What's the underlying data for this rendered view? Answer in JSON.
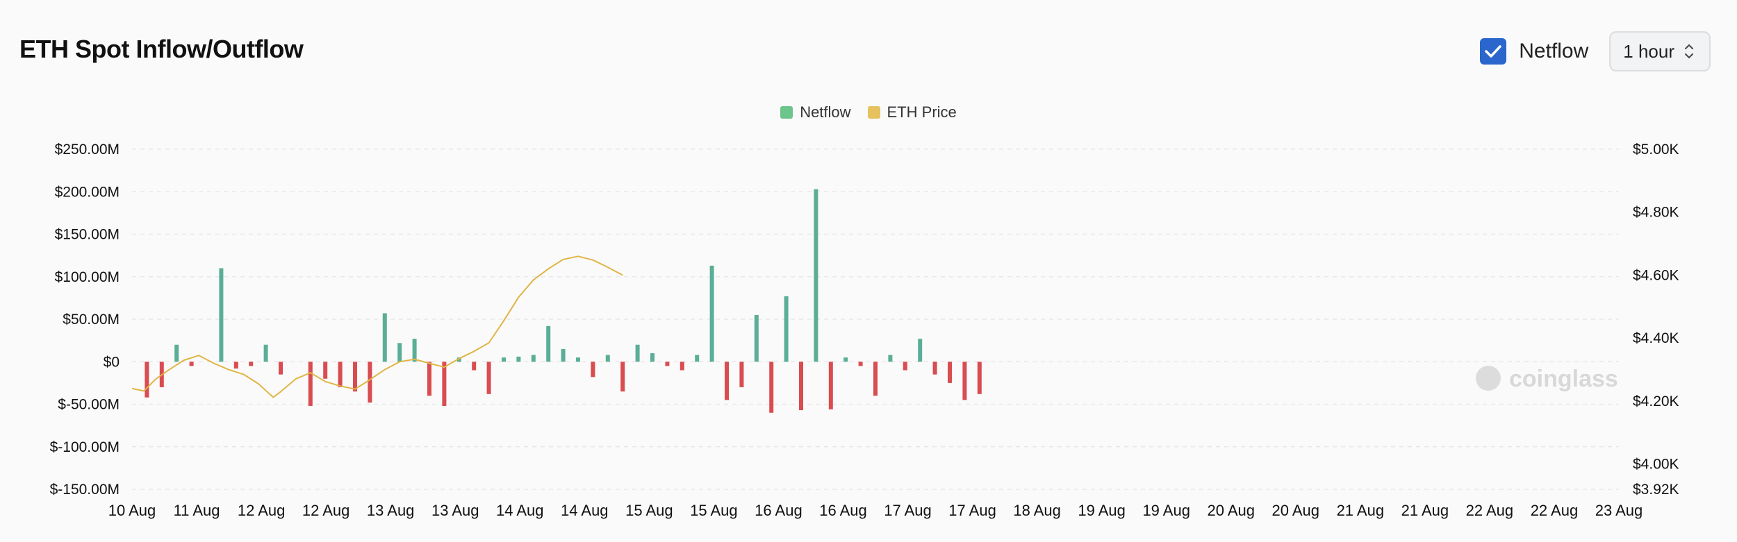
{
  "header": {
    "title": "ETH Spot Inflow/Outflow",
    "checkbox_label": "Netflow",
    "interval": "1 hour"
  },
  "watermark": "coinglass",
  "chart_data": {
    "type": "bar",
    "title": "ETH Spot Inflow/Outflow",
    "legend": [
      {
        "name": "Netflow",
        "color": "#6cc58a"
      },
      {
        "name": "ETH Price",
        "color": "#e5c25f"
      }
    ],
    "colors": {
      "positive": "#5bae96",
      "negative": "#d94c50",
      "price": "#e0b545"
    },
    "left_axis": {
      "min": -150,
      "max": 250,
      "ticks": [
        250,
        200,
        150,
        100,
        50,
        0,
        -50,
        -100,
        -150
      ],
      "labels": [
        "$250.00M",
        "$200.00M",
        "$150.00M",
        "$100.00M",
        "$50.00M",
        "$0",
        "$-50.00M",
        "$-100.00M",
        "$-150.00M"
      ]
    },
    "right_axis": {
      "min": 3920,
      "max": 5000,
      "ticks": [
        5000,
        4800,
        4600,
        4400,
        4200,
        4000,
        3920
      ],
      "labels": [
        "$5.00K",
        "$4.80K",
        "$4.60K",
        "$4.40K",
        "$4.20K",
        "$4.00K",
        "$3.92K"
      ]
    },
    "x_labels": [
      "10 Aug",
      "11 Aug",
      "12 Aug",
      "12 Aug",
      "13 Aug",
      "13 Aug",
      "14 Aug",
      "14 Aug",
      "15 Aug",
      "15 Aug",
      "16 Aug",
      "16 Aug",
      "17 Aug",
      "17 Aug",
      "18 Aug",
      "19 Aug",
      "19 Aug",
      "20 Aug",
      "20 Aug",
      "21 Aug",
      "21 Aug",
      "22 Aug",
      "22 Aug",
      "23 Aug"
    ],
    "netflow": [
      {
        "t": 0.01,
        "v": -42
      },
      {
        "t": 0.02,
        "v": -30
      },
      {
        "t": 0.03,
        "v": 20
      },
      {
        "t": 0.04,
        "v": -5
      },
      {
        "t": 0.06,
        "v": 110
      },
      {
        "t": 0.07,
        "v": -8
      },
      {
        "t": 0.08,
        "v": -5
      },
      {
        "t": 0.09,
        "v": 20
      },
      {
        "t": 0.1,
        "v": -15
      },
      {
        "t": 0.12,
        "v": -52
      },
      {
        "t": 0.13,
        "v": -20
      },
      {
        "t": 0.14,
        "v": -30
      },
      {
        "t": 0.15,
        "v": -35
      },
      {
        "t": 0.16,
        "v": -48
      },
      {
        "t": 0.17,
        "v": 57
      },
      {
        "t": 0.18,
        "v": 22
      },
      {
        "t": 0.19,
        "v": 27
      },
      {
        "t": 0.2,
        "v": -40
      },
      {
        "t": 0.21,
        "v": -52
      },
      {
        "t": 0.22,
        "v": 5
      },
      {
        "t": 0.23,
        "v": -10
      },
      {
        "t": 0.24,
        "v": -38
      },
      {
        "t": 0.25,
        "v": 5
      },
      {
        "t": 0.26,
        "v": 6
      },
      {
        "t": 0.27,
        "v": 8
      },
      {
        "t": 0.28,
        "v": 42
      },
      {
        "t": 0.29,
        "v": 15
      },
      {
        "t": 0.3,
        "v": 5
      },
      {
        "t": 0.31,
        "v": -18
      },
      {
        "t": 0.32,
        "v": 8
      },
      {
        "t": 0.33,
        "v": -35
      },
      {
        "t": 0.34,
        "v": 20
      },
      {
        "t": 0.35,
        "v": 10
      },
      {
        "t": 0.36,
        "v": -5
      },
      {
        "t": 0.37,
        "v": -10
      },
      {
        "t": 0.38,
        "v": 8
      },
      {
        "t": 0.39,
        "v": 113
      },
      {
        "t": 0.4,
        "v": -45
      },
      {
        "t": 0.41,
        "v": -30
      },
      {
        "t": 0.42,
        "v": 55
      },
      {
        "t": 0.43,
        "v": -60
      },
      {
        "t": 0.44,
        "v": 77
      },
      {
        "t": 0.45,
        "v": -57
      },
      {
        "t": 0.46,
        "v": 203
      },
      {
        "t": 0.47,
        "v": -56
      },
      {
        "t": 0.48,
        "v": 5
      },
      {
        "t": 0.49,
        "v": -5
      },
      {
        "t": 0.5,
        "v": -40
      },
      {
        "t": 0.51,
        "v": 8
      },
      {
        "t": 0.52,
        "v": -10
      },
      {
        "t": 0.53,
        "v": 27
      },
      {
        "t": 0.54,
        "v": -15
      },
      {
        "t": 0.55,
        "v": -25
      },
      {
        "t": 0.56,
        "v": -45
      },
      {
        "t": 0.57,
        "v": -38
      }
    ],
    "price": [
      [
        0,
        4240
      ],
      [
        0.008,
        4232
      ],
      [
        0.016,
        4270
      ],
      [
        0.025,
        4300
      ],
      [
        0.035,
        4330
      ],
      [
        0.045,
        4345
      ],
      [
        0.055,
        4320
      ],
      [
        0.065,
        4300
      ],
      [
        0.075,
        4285
      ],
      [
        0.085,
        4255
      ],
      [
        0.095,
        4212
      ],
      [
        0.1,
        4230
      ],
      [
        0.11,
        4270
      ],
      [
        0.12,
        4290
      ],
      [
        0.13,
        4262
      ],
      [
        0.14,
        4248
      ],
      [
        0.15,
        4238
      ],
      [
        0.16,
        4268
      ],
      [
        0.17,
        4300
      ],
      [
        0.18,
        4325
      ],
      [
        0.19,
        4333
      ],
      [
        0.2,
        4320
      ],
      [
        0.21,
        4308
      ],
      [
        0.22,
        4335
      ],
      [
        0.23,
        4358
      ],
      [
        0.24,
        4385
      ],
      [
        0.25,
        4455
      ],
      [
        0.26,
        4530
      ],
      [
        0.27,
        4585
      ],
      [
        0.28,
        4620
      ],
      [
        0.29,
        4650
      ],
      [
        0.3,
        4660
      ],
      [
        0.31,
        4648
      ],
      [
        0.32,
        4625
      ],
      [
        0.33,
        4600
      ]
    ]
  }
}
